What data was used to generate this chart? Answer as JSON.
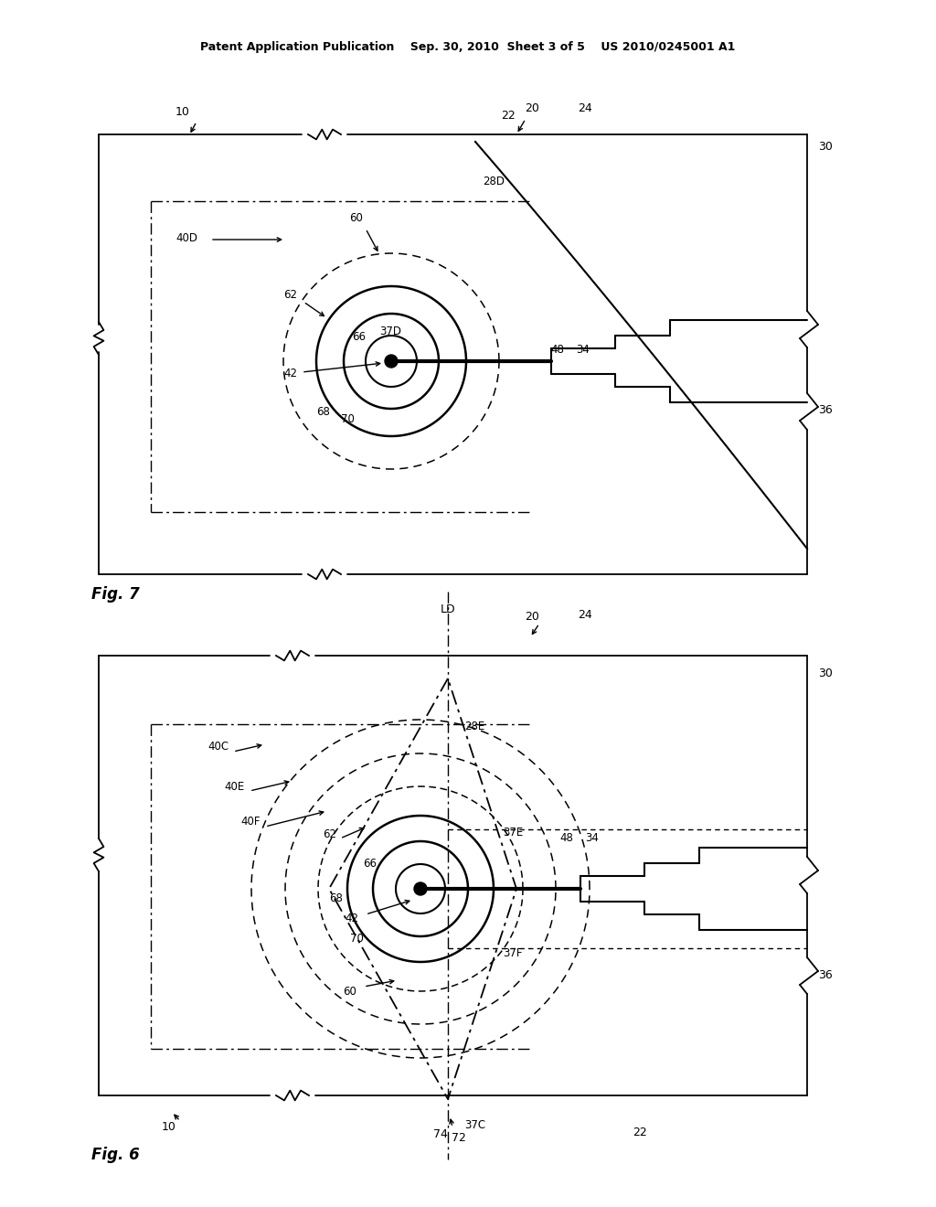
{
  "title_text": "Patent Application Publication    Sep. 30, 2010  Sheet 3 of 5    US 2010/0245001 A1",
  "fig7_label": "Fig. 7",
  "fig6_label": "Fig. 6",
  "background": "#ffffff",
  "line_color": "#000000"
}
